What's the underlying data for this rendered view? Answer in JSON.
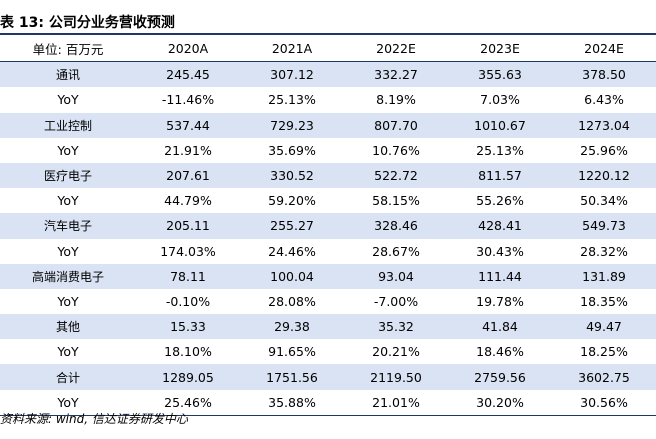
{
  "title": "表 13:  公司分业务营收预测",
  "table": {
    "headers": [
      "单位: 百万元",
      "2020A",
      "2021A",
      "2022E",
      "2023E",
      "2024E"
    ],
    "rows": [
      [
        "通讯",
        "245.45",
        "307.12",
        "332.27",
        "355.63",
        "378.50"
      ],
      [
        "YoY",
        "-11.46%",
        "25.13%",
        "8.19%",
        "7.03%",
        "6.43%"
      ],
      [
        "工业控制",
        "537.44",
        "729.23",
        "807.70",
        "1010.67",
        "1273.04"
      ],
      [
        "YoY",
        "21.91%",
        "35.69%",
        "10.76%",
        "25.13%",
        "25.96%"
      ],
      [
        "医疗电子",
        "207.61",
        "330.52",
        "522.72",
        "811.57",
        "1220.12"
      ],
      [
        "YoY",
        "44.79%",
        "59.20%",
        "58.15%",
        "55.26%",
        "50.34%"
      ],
      [
        "汽车电子",
        "205.11",
        "255.27",
        "328.46",
        "428.41",
        "549.73"
      ],
      [
        "YoY",
        "174.03%",
        "24.46%",
        "28.67%",
        "30.43%",
        "28.32%"
      ],
      [
        "高端消费电子",
        "78.11",
        "100.04",
        "93.04",
        "111.44",
        "131.89"
      ],
      [
        "YoY",
        "-0.10%",
        "28.08%",
        "-7.00%",
        "19.78%",
        "18.35%"
      ],
      [
        "其他",
        "15.33",
        "29.38",
        "35.32",
        "41.84",
        "49.47"
      ],
      [
        "YoY",
        "18.10%",
        "91.65%",
        "20.21%",
        "18.46%",
        "18.25%"
      ],
      [
        "合计",
        "1289.05",
        "1751.56",
        "2119.50",
        "2759.56",
        "3602.75"
      ],
      [
        "YoY",
        "25.46%",
        "35.88%",
        "21.01%",
        "30.20%",
        "30.56%"
      ]
    ]
  },
  "source": "资料来源: wind, 信达证券研发中心",
  "colors": {
    "row_shade": "#dae3f3",
    "rule": "#1f3864"
  }
}
